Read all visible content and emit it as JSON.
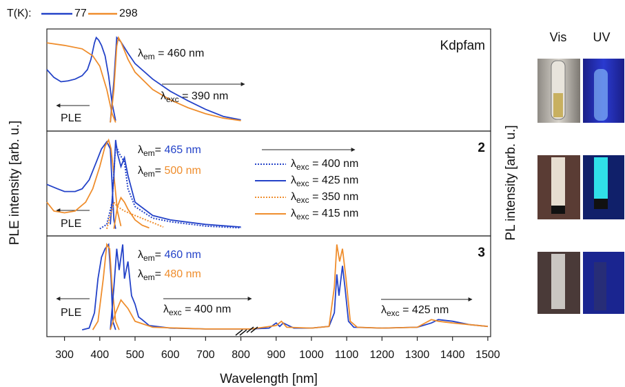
{
  "figure": {
    "legend_title": "T(K):",
    "legend": [
      {
        "label": "77",
        "color": "#2342c8"
      },
      {
        "label": "298",
        "color": "#ef8d2c"
      }
    ],
    "ylabel": "PLE intensity [arb. u.]",
    "y2label": "PL intensity [arb. u.]",
    "photo_labels": [
      "Vis",
      "UV"
    ]
  },
  "chart_data": [
    {
      "type": "line",
      "title": "Kdpfam",
      "xlim": [
        250,
        1508
      ],
      "ylim": [
        -0.08,
        1.1
      ],
      "annotations": [
        {
          "text": "λem = 460 nm"
        },
        {
          "text": "λexc = 390 nm"
        },
        {
          "text": "PLE"
        }
      ],
      "series": [
        {
          "color": "#2342c8",
          "x": [
            250,
            270,
            290,
            310,
            330,
            350,
            365,
            375,
            385,
            390,
            397,
            405,
            415,
            425,
            435,
            445
          ],
          "values": [
            0.63,
            0.54,
            0.49,
            0.5,
            0.52,
            0.56,
            0.63,
            0.75,
            0.94,
            1.0,
            0.97,
            0.91,
            0.79,
            0.56,
            0.24,
            0.04
          ]
        },
        {
          "color": "#ef8d2c",
          "x": [
            250,
            300,
            350,
            380,
            400,
            420,
            435,
            445
          ],
          "values": [
            0.94,
            0.91,
            0.87,
            0.79,
            0.67,
            0.4,
            0.12,
            0.02
          ]
        },
        {
          "color": "#2342c8",
          "x": [
            430,
            440,
            448,
            460,
            480,
            500,
            550,
            600,
            650,
            700,
            750,
            800
          ],
          "values": [
            0.02,
            0.5,
            1.0,
            0.95,
            0.82,
            0.7,
            0.52,
            0.38,
            0.27,
            0.17,
            0.09,
            0.05
          ]
        },
        {
          "color": "#ef8d2c",
          "x": [
            430,
            440,
            448,
            453,
            460,
            480,
            500,
            550,
            600,
            650,
            700,
            750,
            800
          ],
          "values": [
            0.02,
            0.4,
            0.9,
            1.0,
            0.95,
            0.75,
            0.6,
            0.4,
            0.28,
            0.19,
            0.12,
            0.07,
            0.04
          ]
        }
      ]
    },
    {
      "type": "line",
      "title": "2",
      "xlim": [
        250,
        1508
      ],
      "ylim": [
        -0.08,
        1.1
      ],
      "annotations": [
        {
          "text": "λem= 465 nm",
          "color": "#2342c8"
        },
        {
          "text": "λem= 500 nm",
          "color": "#ef8d2c"
        },
        {
          "text": "PLE"
        }
      ],
      "series": [
        {
          "color": "#2342c8",
          "x": [
            250,
            280,
            300,
            330,
            350,
            370,
            390,
            405,
            420,
            430,
            435,
            440,
            445
          ],
          "values": [
            0.5,
            0.45,
            0.42,
            0.42,
            0.45,
            0.55,
            0.75,
            0.9,
            0.98,
            0.9,
            0.5,
            0.1,
            0.0
          ]
        },
        {
          "color": "#ef8d2c",
          "x": [
            250,
            270,
            300,
            330,
            360,
            380,
            400,
            415,
            425,
            432,
            440,
            450,
            460
          ],
          "values": [
            0.3,
            0.2,
            0.18,
            0.2,
            0.3,
            0.45,
            0.7,
            0.93,
            1.0,
            0.9,
            0.6,
            0.2,
            0.03
          ]
        },
        {
          "name": "λexc = 400 nm",
          "color": "#2342c8",
          "dash": "dotted",
          "x": [
            400,
            420,
            435,
            445,
            455,
            470,
            480,
            500,
            550,
            600,
            700,
            800
          ],
          "values": [
            0.0,
            0.05,
            0.3,
            0.95,
            0.85,
            0.75,
            0.45,
            0.25,
            0.12,
            0.08,
            0.03,
            0.01
          ]
        },
        {
          "name": "λexc = 425 nm",
          "color": "#2342c8",
          "x": [
            430,
            440,
            445,
            450,
            460,
            470,
            480,
            500,
            550,
            600,
            700,
            800
          ],
          "values": [
            0.05,
            0.6,
            1.0,
            0.85,
            0.7,
            0.8,
            0.6,
            0.3,
            0.15,
            0.1,
            0.05,
            0.02
          ]
        },
        {
          "name": "λexc = 350 nm",
          "color": "#ef8d2c",
          "dash": "dotted",
          "x": [
            420,
            430,
            440,
            450,
            470,
            500,
            550,
            580
          ],
          "values": [
            0.0,
            0.15,
            0.3,
            0.25,
            0.2,
            0.15,
            0.07,
            0.02
          ]
        },
        {
          "name": "λexc = 415 nm",
          "color": "#ef8d2c",
          "x": [
            440,
            450,
            460,
            470,
            480,
            500,
            520,
            540
          ],
          "values": [
            0.0,
            0.25,
            0.35,
            0.3,
            0.22,
            0.1,
            0.04,
            0.01
          ]
        }
      ]
    },
    {
      "type": "line",
      "title": "3",
      "xlim": [
        250,
        1508
      ],
      "ylim": [
        -0.08,
        1.1
      ],
      "xlabel": "Wavelength [nm]",
      "xticks": [
        300,
        400,
        500,
        600,
        700,
        800,
        900,
        1000,
        1100,
        1200,
        1300,
        1400,
        1500
      ],
      "annotations": [
        {
          "text": "λem= 460 nm",
          "color": "#2342c8"
        },
        {
          "text": "λem= 480 nm",
          "color": "#ef8d2c"
        },
        {
          "text": "λexc = 400 nm"
        },
        {
          "text": "λexc = 425 nm"
        },
        {
          "text": "PLE"
        }
      ],
      "series": [
        {
          "color": "#2342c8",
          "x": [
            350,
            370,
            385,
            395,
            405,
            415,
            425,
            432,
            437,
            445
          ],
          "values": [
            0.0,
            0.02,
            0.2,
            0.6,
            0.85,
            0.95,
            1.0,
            0.6,
            0.1,
            0.0
          ]
        },
        {
          "color": "#ef8d2c",
          "x": [
            380,
            395,
            410,
            420,
            428,
            435,
            445,
            455
          ],
          "values": [
            0.0,
            0.1,
            0.6,
            1.0,
            0.95,
            0.5,
            0.1,
            0.0
          ]
        },
        {
          "color": "#2342c8",
          "x": [
            430,
            440,
            448,
            455,
            465,
            470,
            480,
            490,
            500,
            510,
            520,
            540,
            600,
            700,
            800,
            830,
            880,
            900,
            910,
            920,
            950,
            1000,
            1050,
            1065,
            1072,
            1078,
            1088,
            1095,
            1105,
            1120,
            1200,
            1300,
            1340,
            1360,
            1400,
            1450,
            1500
          ],
          "values": [
            0.0,
            0.5,
            0.95,
            0.7,
            1.0,
            0.6,
            0.8,
            0.4,
            0.3,
            0.15,
            0.12,
            0.05,
            0.02,
            0.01,
            0.01,
            0.01,
            0.02,
            0.08,
            0.04,
            0.08,
            0.02,
            0.02,
            0.04,
            0.2,
            0.65,
            0.4,
            0.75,
            0.5,
            0.1,
            0.03,
            0.02,
            0.03,
            0.08,
            0.12,
            0.1,
            0.06,
            0.04
          ]
        },
        {
          "color": "#ef8d2c",
          "x": [
            430,
            445,
            460,
            480,
            500,
            550,
            700,
            800,
            830,
            900,
            915,
            930,
            1000,
            1050,
            1065,
            1072,
            1080,
            1088,
            1098,
            1110,
            1130,
            1200,
            1300,
            1340,
            1360,
            1400,
            1500
          ],
          "values": [
            0.0,
            0.2,
            0.35,
            0.25,
            0.1,
            0.03,
            0.01,
            0.01,
            0.01,
            0.05,
            0.1,
            0.03,
            0.02,
            0.04,
            0.5,
            1.0,
            0.8,
            0.95,
            0.6,
            0.1,
            0.03,
            0.02,
            0.03,
            0.12,
            0.1,
            0.08,
            0.04
          ]
        }
      ]
    }
  ]
}
